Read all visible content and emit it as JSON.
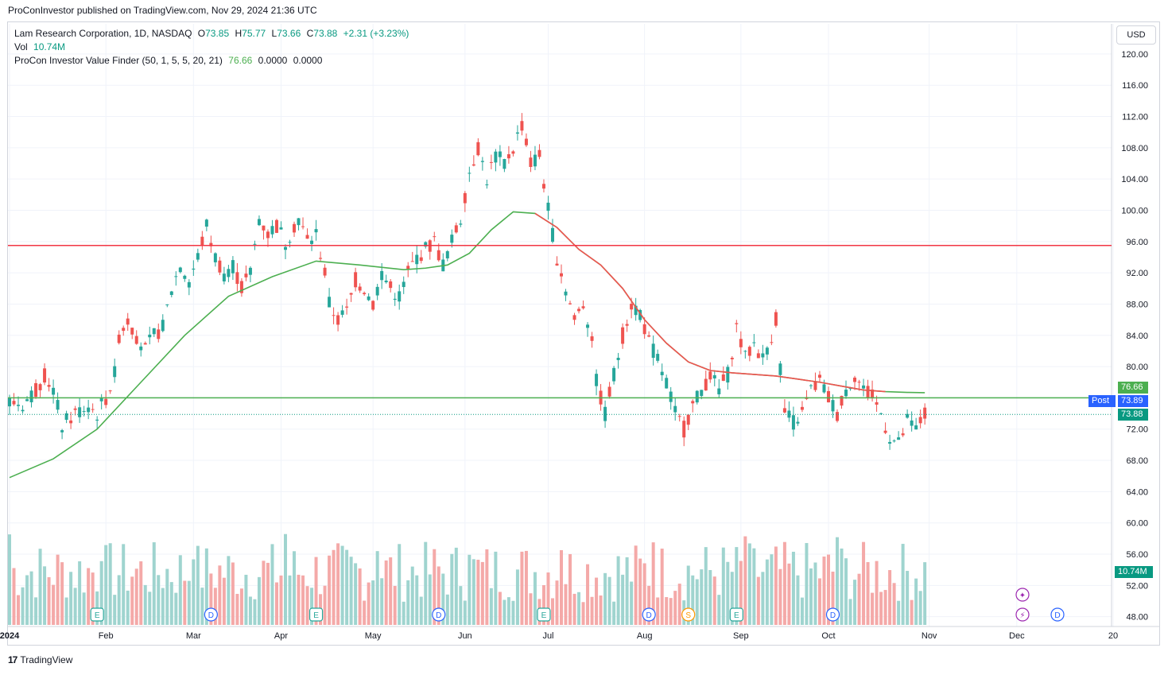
{
  "header": {
    "published_line": "ProConInvestor published on TradingView.com, Nov 29, 2024 21:36 UTC"
  },
  "legend": {
    "symbol": "Lam Research Corporation, 1D, NASDAQ",
    "open_label": "O",
    "open": "73.85",
    "high_label": "H",
    "high": "75.77",
    "low_label": "L",
    "low": "73.66",
    "close_label": "C",
    "close": "73.88",
    "change": "+2.31 (+3.23%)",
    "vol_label": "Vol",
    "vol": "10.74M",
    "indicator": "ProCon Investor Value Finder (50, 1, 5, 5, 20, 21)",
    "ind_v1": "76.66",
    "ind_v2": "0.0000",
    "ind_v3": "0.0000"
  },
  "currency_button": "USD",
  "footer": {
    "brand": "TradingView",
    "logo": "17"
  },
  "colors": {
    "up": "#26a69a",
    "down": "#ef5350",
    "vol_up": "#9fd4cf",
    "vol_down": "#f4a9a8",
    "ma": "#ef5350",
    "ma_green": "#4caf50",
    "hline_red": "#f23645",
    "hline_green": "#4caf50",
    "post_tag": "#2962ff"
  },
  "tags": {
    "ind_value": "76.66",
    "post_label": "Post",
    "post_value": "73.89",
    "last_value": "73.88",
    "vol_value": "10.74M"
  },
  "chart_data": {
    "type": "candlestick",
    "y_ticks": [
      "120.00",
      "116.00",
      "112.00",
      "108.00",
      "104.00",
      "100.00",
      "96.00",
      "92.00",
      "88.00",
      "84.00",
      "80.00",
      "76.00",
      "72.00",
      "68.00",
      "64.00",
      "60.00",
      "56.00",
      "52.00",
      "48.00"
    ],
    "y_tick_values": [
      120,
      116,
      112,
      108,
      104,
      100,
      96,
      92,
      88,
      84,
      80,
      76,
      72,
      68,
      64,
      60,
      56,
      52,
      48
    ],
    "x_labels": [
      {
        "label": "2024",
        "bold": true,
        "day": 0
      },
      {
        "label": "Feb",
        "day": 22
      },
      {
        "label": "Mar",
        "day": 42
      },
      {
        "label": "Apr",
        "day": 62
      },
      {
        "label": "May",
        "day": 83
      },
      {
        "label": "Jun",
        "day": 104
      },
      {
        "label": "Jul",
        "day": 123
      },
      {
        "label": "Aug",
        "day": 145
      },
      {
        "label": "Sep",
        "day": 167
      },
      {
        "label": "Oct",
        "day": 187
      },
      {
        "label": "Nov",
        "day": 210
      },
      {
        "label": "Dec",
        "day": 230
      },
      {
        "label": "20",
        "day": 252
      }
    ],
    "horizontal_levels": [
      95.5,
      76.0
    ],
    "price_anchors": [
      [
        0,
        75.5
      ],
      [
        3,
        75.2
      ],
      [
        6,
        77
      ],
      [
        8,
        79
      ],
      [
        10,
        77
      ],
      [
        12,
        72.5
      ],
      [
        15,
        74
      ],
      [
        18,
        75
      ],
      [
        20,
        74
      ],
      [
        22,
        76
      ],
      [
        24,
        79
      ],
      [
        25,
        84
      ],
      [
        27,
        86
      ],
      [
        29,
        84
      ],
      [
        31,
        82
      ],
      [
        33,
        84
      ],
      [
        35,
        85
      ],
      [
        37,
        90
      ],
      [
        39,
        93
      ],
      [
        41,
        91
      ],
      [
        43,
        94
      ],
      [
        45,
        98
      ],
      [
        47,
        94
      ],
      [
        49,
        92
      ],
      [
        51,
        93
      ],
      [
        53,
        90
      ],
      [
        55,
        92
      ],
      [
        57,
        99
      ],
      [
        59,
        97
      ],
      [
        61,
        98
      ],
      [
        63,
        96
      ],
      [
        66,
        99
      ],
      [
        68,
        96
      ],
      [
        70,
        97
      ],
      [
        72,
        92
      ],
      [
        73,
        88
      ],
      [
        75,
        86
      ],
      [
        77,
        87
      ],
      [
        79,
        91
      ],
      [
        81,
        90
      ],
      [
        83,
        88
      ],
      [
        85,
        92
      ],
      [
        87,
        90
      ],
      [
        89,
        89
      ],
      [
        91,
        92
      ],
      [
        93,
        94
      ],
      [
        95,
        95
      ],
      [
        97,
        96
      ],
      [
        99,
        93
      ],
      [
        101,
        96
      ],
      [
        103,
        99
      ],
      [
        105,
        105
      ],
      [
        107,
        108
      ],
      [
        109,
        104
      ],
      [
        111,
        107
      ],
      [
        113,
        106
      ],
      [
        115,
        108
      ],
      [
        117,
        111
      ],
      [
        119,
        106
      ],
      [
        121,
        107
      ],
      [
        123,
        100
      ],
      [
        125,
        94
      ],
      [
        127,
        90
      ],
      [
        129,
        86
      ],
      [
        131,
        88
      ],
      [
        133,
        84
      ],
      [
        134,
        78
      ],
      [
        136,
        74
      ],
      [
        138,
        79
      ],
      [
        140,
        84
      ],
      [
        142,
        88
      ],
      [
        144,
        87
      ],
      [
        146,
        83
      ],
      [
        148,
        81
      ],
      [
        150,
        78
      ],
      [
        152,
        74
      ],
      [
        154,
        72
      ],
      [
        156,
        75
      ],
      [
        158,
        77
      ],
      [
        160,
        79
      ],
      [
        162,
        77
      ],
      [
        164,
        79
      ],
      [
        166,
        85
      ],
      [
        168,
        81
      ],
      [
        170,
        83
      ],
      [
        172,
        81
      ],
      [
        174,
        84
      ],
      [
        175,
        86
      ],
      [
        176,
        80
      ],
      [
        177,
        74
      ],
      [
        179,
        73
      ],
      [
        181,
        74
      ],
      [
        183,
        77
      ],
      [
        185,
        78
      ],
      [
        187,
        76
      ],
      [
        189,
        74
      ],
      [
        191,
        77
      ],
      [
        193,
        79
      ],
      [
        195,
        77
      ],
      [
        197,
        76
      ],
      [
        199,
        74
      ],
      [
        201,
        71
      ],
      [
        203,
        70
      ],
      [
        205,
        73
      ],
      [
        207,
        72
      ],
      [
        209,
        73.9
      ]
    ],
    "ma_values": [
      [
        0,
        65.8
      ],
      [
        10,
        68.2
      ],
      [
        20,
        72
      ],
      [
        30,
        78
      ],
      [
        40,
        84
      ],
      [
        50,
        89
      ],
      [
        60,
        91.5
      ],
      [
        70,
        93.5
      ],
      [
        80,
        93
      ],
      [
        90,
        92.4
      ],
      [
        95,
        92.6
      ],
      [
        100,
        93
      ],
      [
        105,
        94.5
      ],
      [
        110,
        97.5
      ],
      [
        115,
        99.8
      ],
      [
        120,
        99.6
      ],
      [
        125,
        97.8
      ],
      [
        130,
        95
      ],
      [
        135,
        93
      ],
      [
        140,
        90
      ],
      [
        145,
        86
      ],
      [
        150,
        83
      ],
      [
        155,
        80.6
      ],
      [
        160,
        79.5
      ],
      [
        165,
        79.2
      ],
      [
        170,
        79
      ],
      [
        175,
        78.8
      ],
      [
        180,
        78.4
      ],
      [
        185,
        78
      ],
      [
        190,
        77.5
      ],
      [
        195,
        77
      ],
      [
        200,
        76.8
      ],
      [
        205,
        76.7
      ],
      [
        209,
        76.66
      ]
    ],
    "ma_green_from_day": 187,
    "volume_unit": "M",
    "volume_range": [
      0,
      20
    ],
    "event_markers": [
      {
        "day": 20,
        "icon": "E",
        "kind": "earnings"
      },
      {
        "day": 46,
        "icon": "D",
        "kind": "dividend"
      },
      {
        "day": 70,
        "icon": "E",
        "kind": "earnings"
      },
      {
        "day": 98,
        "icon": "D",
        "kind": "dividend"
      },
      {
        "day": 122,
        "icon": "E",
        "kind": "earnings"
      },
      {
        "day": 146,
        "icon": "D",
        "kind": "dividend"
      },
      {
        "day": 155,
        "icon": "S",
        "kind": "split"
      },
      {
        "day": 166,
        "icon": "E",
        "kind": "earnings"
      },
      {
        "day": 188,
        "icon": "D",
        "kind": "dividend"
      }
    ],
    "future_markers": [
      {
        "icon": "✦",
        "kind": "ideas"
      },
      {
        "icon": "⚡",
        "kind": "events"
      },
      {
        "icon": "D",
        "kind": "dividend"
      }
    ]
  }
}
